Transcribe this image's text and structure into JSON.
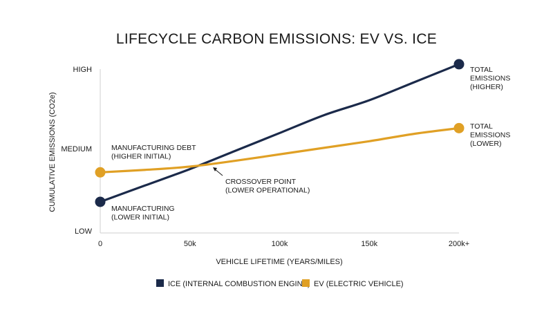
{
  "chart_data": {
    "type": "line",
    "title": "LIFECYCLE CARBON EMISSIONS: EV VS. ICE",
    "xlabel": "VEHICLE LIFETIME (YEARS/MILES)",
    "ylabel": "CUMULATIVE EMISSIONS (CO2e)",
    "x_ticks": [
      "0",
      "50k",
      "100k",
      "150k",
      "200k+"
    ],
    "y_ticks": [
      "LOW",
      "MEDIUM",
      "HIGH"
    ],
    "xlim": [
      0,
      200
    ],
    "ylim": [
      0,
      100
    ],
    "x_unit": "thousand miles",
    "y_scale_note": "qualitative 0 (LOW) - 100 (HIGH)",
    "grid": false,
    "legend_position": "bottom",
    "series": [
      {
        "name": "ICE (INTERNAL COMBUSTION ENGINE)",
        "color": "#1b2a4a",
        "x": [
          0,
          25,
          50,
          75,
          100,
          125,
          150,
          175,
          200
        ],
        "y": [
          19,
          29,
          39,
          50,
          61,
          72,
          81,
          92,
          103
        ]
      },
      {
        "name": "EV (ELECTRIC VEHICLE)",
        "color": "#e0a025",
        "x": [
          0,
          25,
          50,
          75,
          100,
          125,
          150,
          175,
          200
        ],
        "y": [
          37,
          38.5,
          40.5,
          44,
          48,
          52,
          56,
          60.5,
          64
        ]
      }
    ],
    "annotations": [
      {
        "id": "ice_start",
        "lines": [
          "MANUFACTURING",
          "(LOWER INITIAL)"
        ]
      },
      {
        "id": "ev_start",
        "lines": [
          "MANUFACTURING DEBT",
          "(HIGHER INITIAL)"
        ]
      },
      {
        "id": "crossover",
        "lines": [
          "CROSSOVER POINT",
          "(LOWER OPERATIONAL)"
        ]
      },
      {
        "id": "ice_end",
        "lines": [
          "TOTAL",
          "EMISSIONS",
          "(HIGHER)"
        ]
      },
      {
        "id": "ev_end",
        "lines": [
          "TOTAL",
          "EMISSIONS",
          "(LOWER)"
        ]
      }
    ]
  }
}
